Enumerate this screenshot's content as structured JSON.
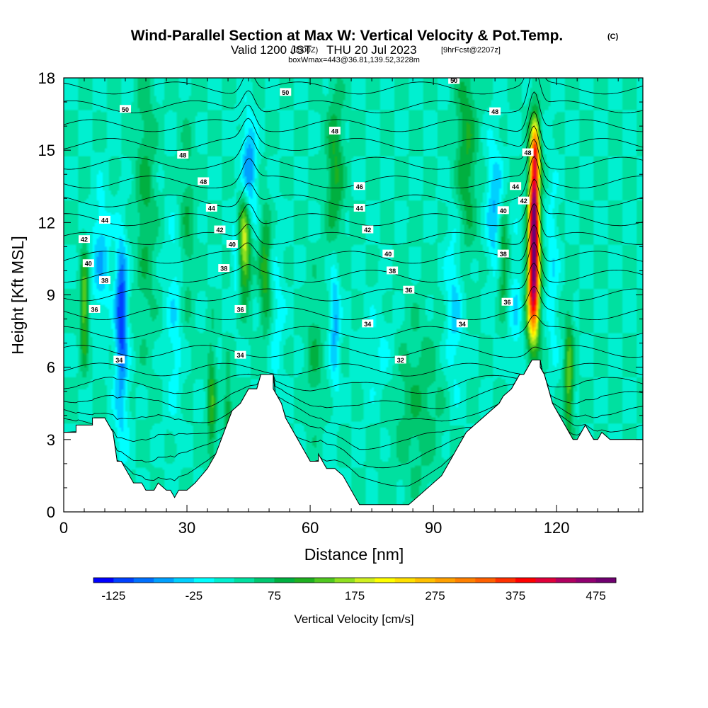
{
  "chart_data": {
    "type": "heatmap",
    "title": "Wind-Parallel Section at Max W: Vertical Velocity & Pot.Temp.",
    "title_mark": "(C)",
    "subtitle": {
      "valid_prefix": "Valid 1200 JST",
      "utc": "(0300Z)",
      "date": "THU 20 Jul 2023",
      "forecast": "[9hrFcst@2207z]"
    },
    "subtitle2": "boxWmax=443@36.81,139.52,3228m",
    "xlabel": "Distance [nm]",
    "ylabel": "Height [Kft MSL]",
    "xlim": [
      0,
      141
    ],
    "ylim": [
      0,
      18
    ],
    "x_ticks": [
      0,
      30,
      60,
      90,
      120
    ],
    "y_ticks": [
      0,
      3,
      6,
      9,
      12,
      15,
      18
    ],
    "background_value": 25,
    "grid": false,
    "colorbar": {
      "label": "Vertical Velocity [cm/s]",
      "tick_labels": [
        "-125",
        "-25",
        "75",
        "175",
        "275",
        "375",
        "475"
      ],
      "min": -150,
      "max": 500,
      "colors": [
        "#0000ff",
        "#0040ff",
        "#0070ff",
        "#00a0ff",
        "#00d0ff",
        "#00ffff",
        "#00f0d0",
        "#00e0a0",
        "#00c870",
        "#00b040",
        "#1fb020",
        "#50c820",
        "#90e020",
        "#d0f020",
        "#ffff00",
        "#ffe000",
        "#ffc000",
        "#ffa000",
        "#ff8000",
        "#ff6000",
        "#ff3000",
        "#ff0000",
        "#e0003a",
        "#b00060",
        "#900070",
        "#700070"
      ]
    },
    "terrain_height_kft": [
      [
        0,
        3.3
      ],
      [
        3,
        3.3
      ],
      [
        3,
        3.6
      ],
      [
        7,
        3.6
      ],
      [
        7,
        3.9
      ],
      [
        10,
        3.9
      ],
      [
        11,
        3.6
      ],
      [
        12,
        3.3
      ],
      [
        13,
        2.1
      ],
      [
        14,
        2.1
      ],
      [
        15,
        1.8
      ],
      [
        16,
        1.5
      ],
      [
        17,
        1.2
      ],
      [
        19,
        1.2
      ],
      [
        20,
        0.9
      ],
      [
        22,
        0.9
      ],
      [
        23,
        1.2
      ],
      [
        25,
        0.9
      ],
      [
        26,
        0.9
      ],
      [
        27,
        0.6
      ],
      [
        28,
        0.9
      ],
      [
        30,
        0.9
      ],
      [
        32,
        1.2
      ],
      [
        35,
        1.8
      ],
      [
        37,
        2.4
      ],
      [
        39,
        3.3
      ],
      [
        41,
        4.2
      ],
      [
        43,
        4.5
      ],
      [
        45,
        5.1
      ],
      [
        47,
        5.1
      ],
      [
        48,
        5.7
      ],
      [
        51,
        5.7
      ],
      [
        51,
        5.1
      ],
      [
        53,
        4.5
      ],
      [
        54,
        3.9
      ],
      [
        55,
        3.6
      ],
      [
        56,
        3.3
      ],
      [
        57,
        3.0
      ],
      [
        59,
        2.4
      ],
      [
        60,
        2.1
      ],
      [
        61,
        2.1
      ],
      [
        62,
        2.1
      ],
      [
        62,
        2.4
      ],
      [
        63,
        2.1
      ],
      [
        64,
        1.8
      ],
      [
        66,
        1.8
      ],
      [
        68,
        1.5
      ],
      [
        69,
        1.2
      ],
      [
        70,
        0.9
      ],
      [
        71,
        0.6
      ],
      [
        72,
        0.3
      ],
      [
        74,
        0.3
      ],
      [
        84,
        0.3
      ],
      [
        86,
        0.6
      ],
      [
        88,
        0.9
      ],
      [
        90,
        1.2
      ],
      [
        92,
        1.5
      ],
      [
        94,
        2.1
      ],
      [
        96,
        2.7
      ],
      [
        98,
        3.3
      ],
      [
        100,
        3.6
      ],
      [
        102,
        3.9
      ],
      [
        104,
        4.2
      ],
      [
        106,
        4.5
      ],
      [
        107,
        4.8
      ],
      [
        109,
        5.1
      ],
      [
        110,
        5.4
      ],
      [
        111,
        5.7
      ],
      [
        112,
        5.7
      ],
      [
        113,
        6.0
      ],
      [
        114,
        6.3
      ],
      [
        116,
        6.3
      ],
      [
        116,
        6.0
      ],
      [
        117,
        5.7
      ],
      [
        118,
        5.1
      ],
      [
        119,
        4.5
      ],
      [
        120,
        4.2
      ],
      [
        121,
        3.9
      ],
      [
        122,
        3.6
      ],
      [
        123,
        3.3
      ],
      [
        124,
        3.0
      ],
      [
        125,
        3.0
      ],
      [
        126,
        3.3
      ],
      [
        127,
        3.6
      ],
      [
        128,
        3.3
      ],
      [
        129,
        3.0
      ],
      [
        130,
        3.0
      ],
      [
        131,
        3.3
      ],
      [
        133,
        3.0
      ],
      [
        141,
        3.0
      ]
    ],
    "w_features": [
      {
        "x": 5,
        "y": 8.5,
        "sx": 0.7,
        "sy": 1.6,
        "w": 130
      },
      {
        "x": 9,
        "y": 10.5,
        "sx": 1.6,
        "sy": 1.8,
        "w": -70
      },
      {
        "x": 14,
        "y": 8.5,
        "sx": 1.0,
        "sy": 2.0,
        "w": -140
      },
      {
        "x": 14,
        "y": 4.5,
        "sx": 1.3,
        "sy": 2.2,
        "w": -50
      },
      {
        "x": 20,
        "y": 13.0,
        "sx": 1.8,
        "sy": 4.0,
        "w": 55
      },
      {
        "x": 27,
        "y": 8.0,
        "sx": 1.4,
        "sy": 3.0,
        "w": -45
      },
      {
        "x": 30,
        "y": 12.0,
        "sx": 1.4,
        "sy": 3.0,
        "w": 45
      },
      {
        "x": 36,
        "y": 4.5,
        "sx": 0.8,
        "sy": 1.8,
        "w": 90
      },
      {
        "x": 40,
        "y": 4.0,
        "sx": 0.7,
        "sy": 1.3,
        "w": 80
      },
      {
        "x": 42,
        "y": 10.5,
        "sx": 0.8,
        "sy": 1.3,
        "w": -60
      },
      {
        "x": 44,
        "y": 11.2,
        "sx": 1.1,
        "sy": 1.5,
        "w": 180
      },
      {
        "x": 45,
        "y": 14.0,
        "sx": 1.3,
        "sy": 1.6,
        "w": -110
      },
      {
        "x": 49,
        "y": 10.0,
        "sx": 1.0,
        "sy": 1.8,
        "w": 90
      },
      {
        "x": 52,
        "y": 8.0,
        "sx": 1.3,
        "sy": 2.5,
        "w": -35
      },
      {
        "x": 61,
        "y": 6.5,
        "sx": 1.6,
        "sy": 2.0,
        "w": 45
      },
      {
        "x": 66,
        "y": 8.0,
        "sx": 0.9,
        "sy": 2.0,
        "w": -85
      },
      {
        "x": 66,
        "y": 14.0,
        "sx": 1.5,
        "sy": 2.5,
        "w": 80
      },
      {
        "x": 77,
        "y": 6.5,
        "sx": 3.0,
        "sy": 1.5,
        "w": -30
      },
      {
        "x": 86,
        "y": 4.5,
        "sx": 4.5,
        "sy": 2.5,
        "w": 45
      },
      {
        "x": 95,
        "y": 8.5,
        "sx": 1.5,
        "sy": 2.5,
        "w": -60
      },
      {
        "x": 98,
        "y": 15.0,
        "sx": 1.8,
        "sy": 3.0,
        "w": 75
      },
      {
        "x": 105,
        "y": 12.5,
        "sx": 1.4,
        "sy": 2.0,
        "w": -80
      },
      {
        "x": 107,
        "y": 10.5,
        "sx": 1.0,
        "sy": 1.5,
        "w": 90
      },
      {
        "x": 110,
        "y": 8.5,
        "sx": 1.2,
        "sy": 2.0,
        "w": -45
      },
      {
        "x": 114.5,
        "y": 12.0,
        "sx": 0.9,
        "sy": 2.3,
        "w": 480
      },
      {
        "x": 114.2,
        "y": 8.8,
        "sx": 1.1,
        "sy": 1.5,
        "w": 220
      },
      {
        "x": 115,
        "y": 15.0,
        "sx": 0.7,
        "sy": 0.8,
        "w": 170
      },
      {
        "x": 119,
        "y": 10.0,
        "sx": 1.0,
        "sy": 3.0,
        "w": -45
      },
      {
        "x": 123,
        "y": 5.5,
        "sx": 0.8,
        "sy": 1.8,
        "w": 120
      }
    ],
    "contour_labels": [
      {
        "text": "50",
        "x": 15,
        "y": 16.7
      },
      {
        "text": "50",
        "x": 54,
        "y": 17.4
      },
      {
        "text": "50",
        "x": 95,
        "y": 17.9
      },
      {
        "text": "48",
        "x": 29,
        "y": 14.8
      },
      {
        "text": "48",
        "x": 66,
        "y": 15.8
      },
      {
        "text": "48",
        "x": 105,
        "y": 16.6
      },
      {
        "text": "48",
        "x": 113,
        "y": 14.9
      },
      {
        "text": "48",
        "x": 34,
        "y": 13.7
      },
      {
        "text": "46",
        "x": 72,
        "y": 13.5
      },
      {
        "text": "44",
        "x": 10,
        "y": 12.1
      },
      {
        "text": "44",
        "x": 36,
        "y": 12.6
      },
      {
        "text": "44",
        "x": 72,
        "y": 12.6
      },
      {
        "text": "44",
        "x": 110,
        "y": 13.5
      },
      {
        "text": "42",
        "x": 5,
        "y": 11.3
      },
      {
        "text": "42",
        "x": 38,
        "y": 11.7
      },
      {
        "text": "42",
        "x": 74,
        "y": 11.7
      },
      {
        "text": "42",
        "x": 112,
        "y": 12.9
      },
      {
        "text": "40",
        "x": 6,
        "y": 10.3
      },
      {
        "text": "40",
        "x": 41,
        "y": 11.1
      },
      {
        "text": "40",
        "x": 79,
        "y": 10.7
      },
      {
        "text": "40",
        "x": 107,
        "y": 12.5
      },
      {
        "text": "38",
        "x": 10,
        "y": 9.6
      },
      {
        "text": "38",
        "x": 39,
        "y": 10.1
      },
      {
        "text": "38",
        "x": 80,
        "y": 10.0
      },
      {
        "text": "38",
        "x": 107,
        "y": 10.7
      },
      {
        "text": "36",
        "x": 7.5,
        "y": 8.4
      },
      {
        "text": "36",
        "x": 43,
        "y": 8.4
      },
      {
        "text": "36",
        "x": 84,
        "y": 9.2
      },
      {
        "text": "36",
        "x": 108,
        "y": 8.7
      },
      {
        "text": "34",
        "x": 13.5,
        "y": 6.3
      },
      {
        "text": "34",
        "x": 43,
        "y": 6.5
      },
      {
        "text": "34",
        "x": 74,
        "y": 7.8
      },
      {
        "text": "34",
        "x": 97,
        "y": 7.8
      },
      {
        "text": "32",
        "x": 82,
        "y": 6.3
      }
    ]
  }
}
